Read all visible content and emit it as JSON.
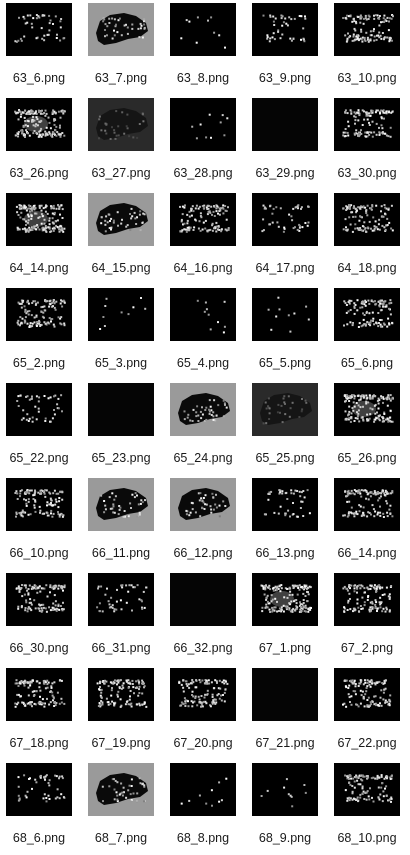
{
  "files": [
    {
      "name": "63_6.png",
      "style": "sparse"
    },
    {
      "name": "63_7.png",
      "style": "gray-bg"
    },
    {
      "name": "63_8.png",
      "style": "dots"
    },
    {
      "name": "63_9.png",
      "style": "sparse"
    },
    {
      "name": "63_10.png",
      "style": "dense"
    },
    {
      "name": "63_26.png",
      "style": "dense-blob"
    },
    {
      "name": "63_27.png",
      "style": "dark-gray"
    },
    {
      "name": "63_28.png",
      "style": "dots"
    },
    {
      "name": "63_29.png",
      "style": "black"
    },
    {
      "name": "63_30.png",
      "style": "dense"
    },
    {
      "name": "64_14.png",
      "style": "dense-blob"
    },
    {
      "name": "64_15.png",
      "style": "gray-bg"
    },
    {
      "name": "64_16.png",
      "style": "dense"
    },
    {
      "name": "64_17.png",
      "style": "sparse"
    },
    {
      "name": "64_18.png",
      "style": "dense"
    },
    {
      "name": "65_2.png",
      "style": "dense"
    },
    {
      "name": "65_3.png",
      "style": "dots"
    },
    {
      "name": "65_4.png",
      "style": "dots"
    },
    {
      "name": "65_5.png",
      "style": "dots"
    },
    {
      "name": "65_6.png",
      "style": "dense"
    },
    {
      "name": "65_22.png",
      "style": "sparse"
    },
    {
      "name": "65_23.png",
      "style": "black"
    },
    {
      "name": "65_24.png",
      "style": "gray-bg"
    },
    {
      "name": "65_25.png",
      "style": "dark-gray"
    },
    {
      "name": "65_26.png",
      "style": "dense-blob"
    },
    {
      "name": "66_10.png",
      "style": "dense"
    },
    {
      "name": "66_11.png",
      "style": "gray-bg"
    },
    {
      "name": "66_12.png",
      "style": "gray-bg"
    },
    {
      "name": "66_13.png",
      "style": "sparse"
    },
    {
      "name": "66_14.png",
      "style": "dense"
    },
    {
      "name": "66_30.png",
      "style": "dense"
    },
    {
      "name": "66_31.png",
      "style": "sparse"
    },
    {
      "name": "66_32.png",
      "style": "black"
    },
    {
      "name": "67_1.png",
      "style": "dense-blob"
    },
    {
      "name": "67_2.png",
      "style": "dense"
    },
    {
      "name": "67_18.png",
      "style": "dense"
    },
    {
      "name": "67_19.png",
      "style": "dense"
    },
    {
      "name": "67_20.png",
      "style": "dense"
    },
    {
      "name": "67_21.png",
      "style": "black"
    },
    {
      "name": "67_22.png",
      "style": "dense"
    },
    {
      "name": "68_6.png",
      "style": "sparse"
    },
    {
      "name": "68_7.png",
      "style": "gray-bg"
    },
    {
      "name": "68_8.png",
      "style": "dots"
    },
    {
      "name": "68_9.png",
      "style": "dots"
    },
    {
      "name": "68_10.png",
      "style": "dense"
    }
  ]
}
